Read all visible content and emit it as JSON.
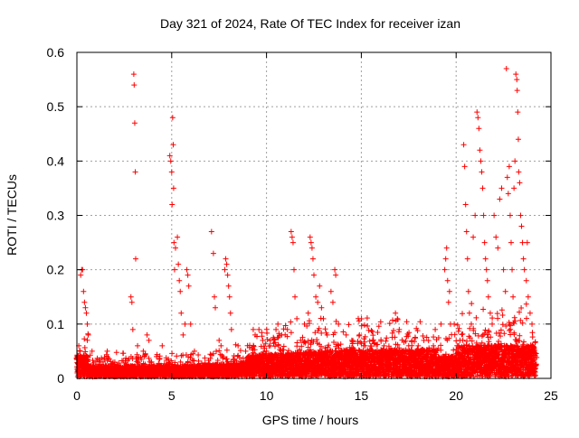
{
  "chart_data": {
    "type": "scatter",
    "title": "Day 321 of 2024, Rate Of TEC Index for receiver izan",
    "xlabel": "GPS time / hours",
    "ylabel": "ROTI / TECUs",
    "xlim": [
      0,
      25
    ],
    "ylim": [
      0,
      0.6
    ],
    "x_ticks": [
      0,
      5,
      10,
      15,
      20,
      25
    ],
    "y_ticks": [
      0,
      0.1,
      0.2,
      0.3,
      0.4,
      0.5,
      0.6
    ],
    "y_tick_labels": [
      "0",
      "0.1",
      "0.2",
      "0.3",
      "0.4",
      "0.5",
      "0.6"
    ],
    "grid": true,
    "marker": "+",
    "colors": {
      "series": "#ff0000",
      "grid": "#a0a0a0",
      "axis": "#000000"
    },
    "points": [
      [
        0.1,
        0.06
      ],
      [
        0.15,
        0.05
      ],
      [
        0.2,
        0.19
      ],
      [
        0.25,
        0.2
      ],
      [
        0.3,
        0.2
      ],
      [
        0.35,
        0.16
      ],
      [
        0.4,
        0.14
      ],
      [
        0.45,
        0.13
      ],
      [
        0.5,
        0.12
      ],
      [
        0.55,
        0.1
      ],
      [
        0.6,
        0.08
      ],
      [
        0.8,
        0.05
      ],
      [
        1.2,
        0.03
      ],
      [
        1.6,
        0.05
      ],
      [
        2.0,
        0.03
      ],
      [
        2.85,
        0.15
      ],
      [
        2.9,
        0.14
      ],
      [
        2.95,
        0.09
      ],
      [
        3.0,
        0.56
      ],
      [
        3.02,
        0.54
      ],
      [
        3.05,
        0.47
      ],
      [
        3.08,
        0.38
      ],
      [
        3.1,
        0.22
      ],
      [
        3.2,
        0.06
      ],
      [
        3.5,
        0.05
      ],
      [
        3.7,
        0.08
      ],
      [
        3.8,
        0.07
      ],
      [
        4.2,
        0.04
      ],
      [
        4.5,
        0.06
      ],
      [
        4.9,
        0.41
      ],
      [
        4.95,
        0.4
      ],
      [
        5.0,
        0.38
      ],
      [
        5.02,
        0.32
      ],
      [
        5.05,
        0.48
      ],
      [
        5.08,
        0.43
      ],
      [
        5.1,
        0.35
      ],
      [
        5.12,
        0.25
      ],
      [
        5.15,
        0.2
      ],
      [
        5.2,
        0.24
      ],
      [
        5.3,
        0.26
      ],
      [
        5.35,
        0.21
      ],
      [
        5.4,
        0.18
      ],
      [
        5.45,
        0.16
      ],
      [
        5.5,
        0.12
      ],
      [
        5.6,
        0.08
      ],
      [
        5.7,
        0.1
      ],
      [
        5.8,
        0.2
      ],
      [
        5.85,
        0.19
      ],
      [
        5.9,
        0.17
      ],
      [
        6.0,
        0.1
      ],
      [
        6.2,
        0.05
      ],
      [
        7.1,
        0.27
      ],
      [
        7.2,
        0.23
      ],
      [
        7.25,
        0.15
      ],
      [
        7.3,
        0.13
      ],
      [
        7.5,
        0.07
      ],
      [
        7.6,
        0.06
      ],
      [
        7.8,
        0.2
      ],
      [
        7.85,
        0.22
      ],
      [
        7.9,
        0.21
      ],
      [
        7.95,
        0.19
      ],
      [
        8.0,
        0.17
      ],
      [
        8.05,
        0.15
      ],
      [
        8.1,
        0.12
      ],
      [
        8.15,
        0.09
      ],
      [
        8.5,
        0.06
      ],
      [
        8.9,
        0.05
      ],
      [
        9.3,
        0.09
      ],
      [
        9.4,
        0.08
      ],
      [
        9.6,
        0.09
      ],
      [
        9.8,
        0.07
      ],
      [
        10.0,
        0.05
      ],
      [
        10.2,
        0.06
      ],
      [
        10.5,
        0.09
      ],
      [
        10.6,
        0.1
      ],
      [
        10.8,
        0.08
      ],
      [
        11.1,
        0.09
      ],
      [
        11.3,
        0.27
      ],
      [
        11.35,
        0.26
      ],
      [
        11.4,
        0.25
      ],
      [
        11.45,
        0.2
      ],
      [
        11.5,
        0.15
      ],
      [
        11.6,
        0.11
      ],
      [
        11.8,
        0.07
      ],
      [
        12.0,
        0.1
      ],
      [
        12.2,
        0.12
      ],
      [
        12.3,
        0.26
      ],
      [
        12.35,
        0.25
      ],
      [
        12.4,
        0.24
      ],
      [
        12.45,
        0.22
      ],
      [
        12.5,
        0.19
      ],
      [
        12.6,
        0.15
      ],
      [
        12.7,
        0.14
      ],
      [
        12.8,
        0.17
      ],
      [
        12.9,
        0.13
      ],
      [
        13.0,
        0.11
      ],
      [
        13.2,
        0.08
      ],
      [
        13.4,
        0.16
      ],
      [
        13.5,
        0.14
      ],
      [
        13.6,
        0.2
      ],
      [
        13.65,
        0.19
      ],
      [
        13.8,
        0.1
      ],
      [
        14.2,
        0.08
      ],
      [
        14.5,
        0.07
      ],
      [
        14.9,
        0.08
      ],
      [
        15.2,
        0.06
      ],
      [
        15.6,
        0.07
      ],
      [
        16.2,
        0.06
      ],
      [
        16.8,
        0.12
      ],
      [
        16.9,
        0.11
      ],
      [
        17.0,
        0.09
      ],
      [
        17.5,
        0.06
      ],
      [
        18.0,
        0.06
      ],
      [
        18.3,
        0.07
      ],
      [
        18.8,
        0.06
      ],
      [
        19.2,
        0.1
      ],
      [
        19.4,
        0.2
      ],
      [
        19.45,
        0.22
      ],
      [
        19.5,
        0.24
      ],
      [
        19.55,
        0.18
      ],
      [
        19.6,
        0.14
      ],
      [
        19.65,
        0.16
      ],
      [
        19.7,
        0.1
      ],
      [
        19.9,
        0.1
      ],
      [
        20.2,
        0.07
      ],
      [
        20.4,
        0.43
      ],
      [
        20.45,
        0.39
      ],
      [
        20.5,
        0.32
      ],
      [
        20.55,
        0.27
      ],
      [
        20.6,
        0.22
      ],
      [
        20.65,
        0.16
      ],
      [
        20.7,
        0.12
      ],
      [
        20.8,
        0.1
      ],
      [
        20.9,
        0.26
      ],
      [
        21.0,
        0.3
      ],
      [
        21.1,
        0.49
      ],
      [
        21.15,
        0.48
      ],
      [
        21.2,
        0.46
      ],
      [
        21.25,
        0.42
      ],
      [
        21.3,
        0.4
      ],
      [
        21.35,
        0.38
      ],
      [
        21.4,
        0.35
      ],
      [
        21.45,
        0.3
      ],
      [
        21.5,
        0.25
      ],
      [
        21.55,
        0.22
      ],
      [
        21.6,
        0.2
      ],
      [
        21.65,
        0.18
      ],
      [
        21.7,
        0.15
      ],
      [
        21.8,
        0.12
      ],
      [
        21.9,
        0.1
      ],
      [
        22.0,
        0.3
      ],
      [
        22.1,
        0.26
      ],
      [
        22.2,
        0.24
      ],
      [
        22.3,
        0.33
      ],
      [
        22.4,
        0.35
      ],
      [
        22.5,
        0.2
      ],
      [
        22.6,
        0.16
      ],
      [
        22.65,
        0.57
      ],
      [
        22.7,
        0.37
      ],
      [
        22.75,
        0.34
      ],
      [
        22.8,
        0.39
      ],
      [
        22.85,
        0.3
      ],
      [
        22.9,
        0.25
      ],
      [
        22.95,
        0.2
      ],
      [
        23.0,
        0.15
      ],
      [
        23.05,
        0.35
      ],
      [
        23.1,
        0.4
      ],
      [
        23.15,
        0.56
      ],
      [
        23.2,
        0.55
      ],
      [
        23.22,
        0.53
      ],
      [
        23.25,
        0.49
      ],
      [
        23.28,
        0.44
      ],
      [
        23.3,
        0.38
      ],
      [
        23.35,
        0.36
      ],
      [
        23.4,
        0.3
      ],
      [
        23.45,
        0.28
      ],
      [
        23.5,
        0.25
      ],
      [
        23.55,
        0.22
      ],
      [
        23.6,
        0.2
      ],
      [
        23.7,
        0.18
      ],
      [
        23.75,
        0.25
      ],
      [
        23.8,
        0.15
      ],
      [
        23.9,
        0.12
      ],
      [
        24.0,
        0.1
      ]
    ]
  }
}
